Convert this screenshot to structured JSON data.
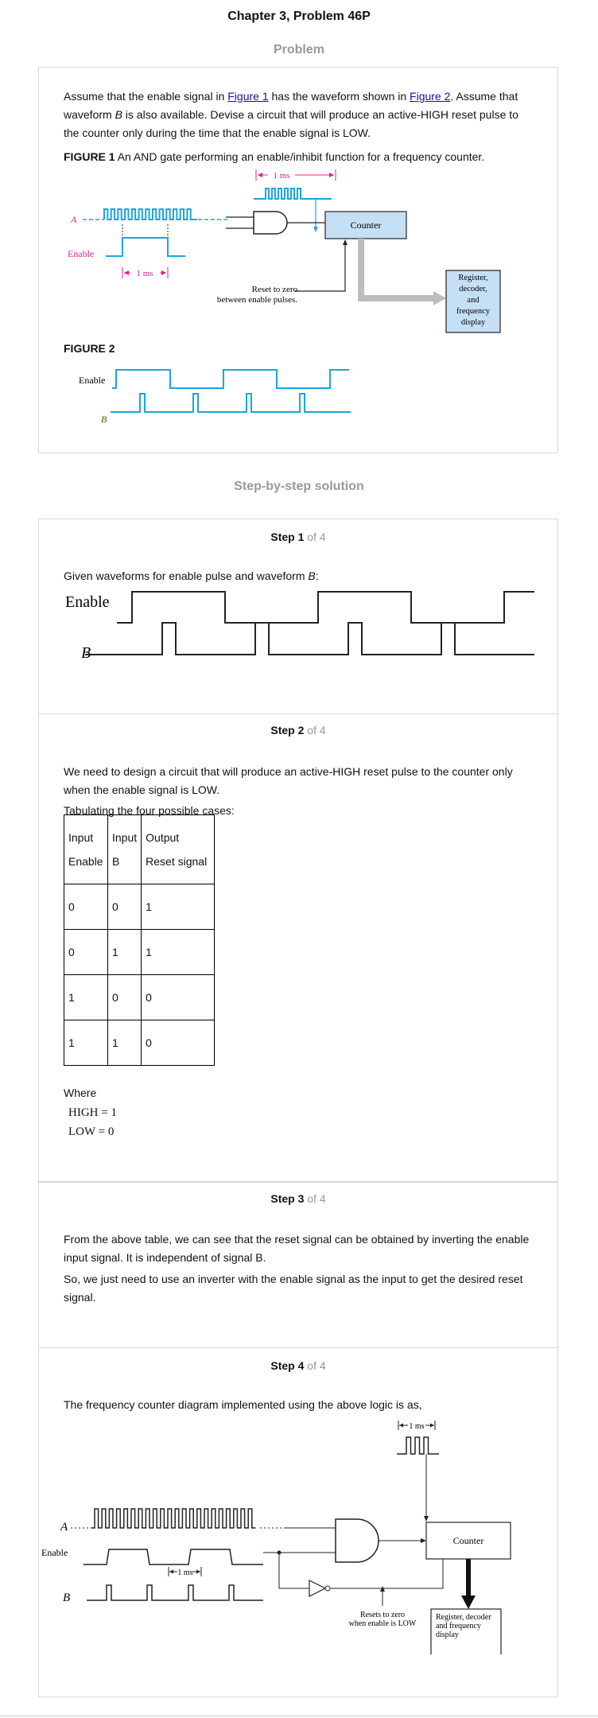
{
  "page_title": "Chapter 3, Problem 46P",
  "problem_heading": "Problem",
  "problem": {
    "p1_a": "Assume that the enable signal in ",
    "p1_link1": "Figure 1",
    "p1_b": " has the waveform shown in ",
    "p1_link2": "Figure 2",
    "p1_c": ". Assume that waveform ",
    "p1_var": "B",
    "p1_d": " is also available. Devise a circuit that will produce an active-HIGH reset pulse to the counter only during the time that the enable signal is LOW.",
    "fig1_label": "FIGURE 1",
    "fig1_caption": " An AND gate performing an enable/inhibit function for a frequency counter.",
    "fig1": {
      "a_label": "A",
      "enable_label": "Enable",
      "ms_top": "1 ms",
      "ms_bottom": "1 ms",
      "counter": "Counter",
      "reset_line1": "Reset to zero",
      "reset_line2": "between enable pulses.",
      "register_lines": [
        "Register,",
        "decoder,",
        "and",
        "frequency",
        "display"
      ]
    },
    "fig2_label": "FIGURE 2",
    "fig2": {
      "enable_label": "Enable",
      "b_label": "B"
    }
  },
  "solution_heading": "Step-by-step solution",
  "step_of": "of 4",
  "steps": {
    "s1": {
      "title": "Step 1",
      "text_a": "Given waveforms for enable pulse and waveform ",
      "text_var": "B",
      "text_b": ":",
      "enable_label": "Enable",
      "b_label": "B"
    },
    "s2": {
      "title": "Step 2",
      "text1": "We need to design a circuit that will produce an active-HIGH reset pulse to the counter only when the enable signal is LOW.",
      "text2": "Tabulating the four possible cases:",
      "table": {
        "h1a": "Input",
        "h1b": "Enable",
        "h2a": "Input",
        "h2b": "B",
        "h3a": "Output",
        "h3b": "Reset signal",
        "rows": [
          [
            "0",
            "0",
            "1"
          ],
          [
            "0",
            "1",
            "1"
          ],
          [
            "1",
            "0",
            "0"
          ],
          [
            "1",
            "1",
            "0"
          ]
        ]
      },
      "where": "Where",
      "eq1": "HIGH = 1",
      "eq2": "LOW = 0"
    },
    "s3": {
      "title": "Step 3",
      "text1": "From the above table, we can see that the reset signal can be obtained by inverting the enable input signal. It is independent of signal B.",
      "text2": "So, we just need to use an inverter with the enable signal as the input to get the desired reset signal."
    },
    "s4": {
      "title": "Step 4",
      "text": "The frequency counter diagram implemented using the above logic is as,",
      "fig": {
        "ms_top": "1 ms",
        "ms_mid": "1 ms",
        "a_label": "A",
        "enable_label": "Enable",
        "b_label": "B",
        "counter": "Counter",
        "resets_line1": "Resets to zero",
        "resets_line2": "when enable is LOW",
        "register_lines": [
          "Register, decoder",
          "and frequency",
          "display"
        ]
      }
    }
  },
  "colors": {
    "heading_gray": "#999999",
    "link": "#1a0dab",
    "waveform_blue": "#1aa6e0",
    "magenta": "#e0208c",
    "box_fill": "#c5dff5",
    "arrow_gray": "#bdbdbd"
  }
}
